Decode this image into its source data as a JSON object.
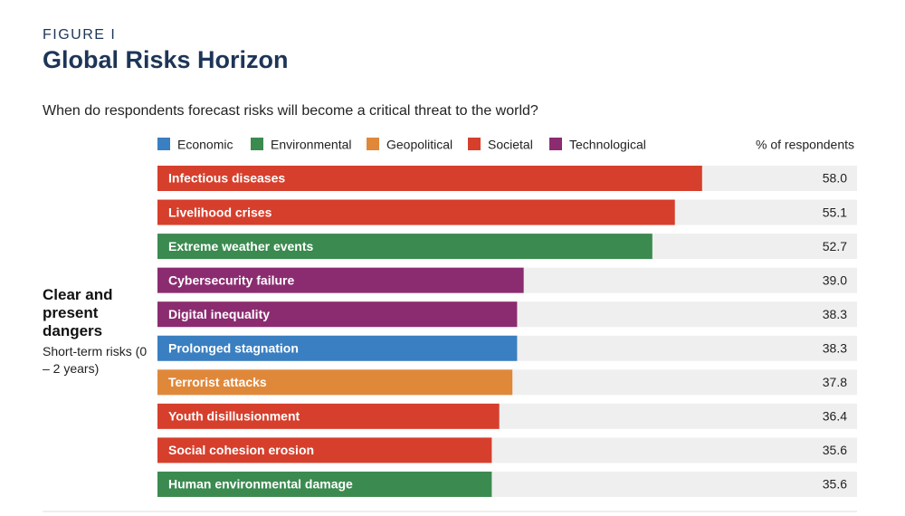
{
  "chart_data": {
    "type": "bar",
    "orientation": "horizontal",
    "figure_label": "FIGURE I",
    "title": "Global Risks Horizon",
    "subtitle": "When do respondents forecast risks will become a critical threat to the world?",
    "value_axis_label": "% of respondents",
    "group_label": "Clear and present dangers",
    "group_sublabel": "Short-term risks (0 – 2 years)",
    "categories": [
      "Infectious diseases",
      "Livelihood crises",
      "Extreme weather events",
      "Cybersecurity failure",
      "Digital inequality",
      "Prolonged stagnation",
      "Terrorist attacks",
      "Youth disillusionment",
      "Social cohesion erosion",
      "Human environmental damage"
    ],
    "xlim": [
      0,
      74.5
    ],
    "series": [
      {
        "name": "Economic",
        "color": "#3a7fc1",
        "values": [
          null,
          null,
          null,
          null,
          null,
          38.3,
          null,
          null,
          null,
          null
        ],
        "value_labels": [
          null,
          null,
          null,
          null,
          null,
          "38.3",
          null,
          null,
          null,
          null
        ]
      },
      {
        "name": "Environmental",
        "color": "#3b8a50",
        "values": [
          null,
          null,
          52.7,
          null,
          null,
          null,
          null,
          null,
          null,
          35.6
        ],
        "value_labels": [
          null,
          null,
          "52.7",
          null,
          null,
          null,
          null,
          null,
          null,
          "35.6"
        ]
      },
      {
        "name": "Geopolitical",
        "color": "#e0883a",
        "values": [
          null,
          null,
          null,
          null,
          null,
          null,
          37.8,
          null,
          null,
          null
        ],
        "value_labels": [
          null,
          null,
          null,
          null,
          null,
          null,
          "37.8",
          null,
          null,
          null
        ]
      },
      {
        "name": "Societal",
        "color": "#d63f2c",
        "values": [
          58,
          55.1,
          null,
          null,
          null,
          null,
          null,
          36.4,
          35.6,
          null
        ],
        "value_labels": [
          "58.0",
          "55.1",
          null,
          null,
          null,
          null,
          null,
          "36.4",
          "35.6",
          null
        ]
      },
      {
        "name": "Technological",
        "color": "#8b2c70",
        "values": [
          null,
          null,
          null,
          39,
          38.3,
          null,
          null,
          null,
          null,
          null
        ],
        "value_labels": [
          null,
          null,
          null,
          "39.0",
          "38.3",
          null,
          null,
          null,
          null,
          null
        ]
      }
    ]
  }
}
